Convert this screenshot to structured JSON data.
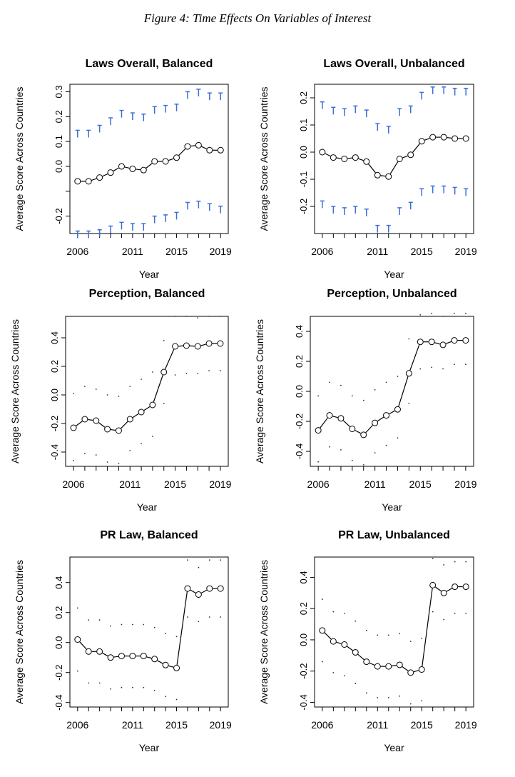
{
  "figure_title": "Figure 4: Time Effects On Variables of Interest",
  "colors": {
    "interval": "#3a6fd8",
    "line": "#000000"
  },
  "chart_data": [
    {
      "type": "line",
      "title": "Laws Overall, Balanced",
      "xlabel": "Year",
      "ylabel": "Average Score Across Countries",
      "ylim": [
        -0.27,
        0.33
      ],
      "yticks": [
        -0.2,
        -0.1,
        0.0,
        0.1,
        0.2,
        0.3
      ],
      "ytick_labels": [
        "-0.2",
        "",
        "0.0",
        "0.1",
        "0.2",
        "0.3"
      ],
      "xticks": [
        2006,
        2011,
        2015,
        2019
      ],
      "interval_style": "whisker",
      "x": [
        2006,
        2007,
        2008,
        2009,
        2010,
        2011,
        2012,
        2013,
        2014,
        2015,
        2016,
        2017,
        2018,
        2019
      ],
      "values": [
        -0.06,
        -0.06,
        -0.045,
        -0.025,
        0.0,
        -0.01,
        -0.015,
        0.02,
        0.02,
        0.035,
        0.08,
        0.085,
        0.065,
        0.065
      ],
      "upper": [
        0.145,
        0.145,
        0.165,
        0.195,
        0.225,
        0.215,
        0.21,
        0.24,
        0.245,
        0.25,
        0.3,
        0.31,
        0.295,
        0.295
      ],
      "lower": [
        -0.26,
        -0.26,
        -0.255,
        -0.24,
        -0.225,
        -0.23,
        -0.23,
        -0.2,
        -0.195,
        -0.185,
        -0.145,
        -0.14,
        -0.15,
        -0.16
      ]
    },
    {
      "type": "line",
      "title": "Laws Overall, Unbalanced",
      "xlabel": "Year",
      "ylabel": "Average Score Across Countries",
      "ylim": [
        -0.3,
        0.25
      ],
      "yticks": [
        -0.2,
        -0.1,
        0.0,
        0.1,
        0.2
      ],
      "ytick_labels": [
        "-0.2",
        "-0.1",
        "0.0",
        "0.1",
        "0.2"
      ],
      "xticks": [
        2006,
        2011,
        2015,
        2019
      ],
      "interval_style": "whisker",
      "x": [
        2006,
        2007,
        2008,
        2009,
        2010,
        2011,
        2012,
        2013,
        2014,
        2015,
        2016,
        2017,
        2018,
        2019
      ],
      "values": [
        0.0,
        -0.02,
        -0.025,
        -0.02,
        -0.035,
        -0.085,
        -0.09,
        -0.025,
        -0.01,
        0.04,
        0.055,
        0.055,
        0.05,
        0.05
      ],
      "upper": [
        0.185,
        0.165,
        0.16,
        0.17,
        0.155,
        0.105,
        0.095,
        0.16,
        0.17,
        0.22,
        0.24,
        0.24,
        0.235,
        0.235
      ],
      "lower": [
        -0.18,
        -0.2,
        -0.205,
        -0.2,
        -0.21,
        -0.27,
        -0.27,
        -0.205,
        -0.185,
        -0.135,
        -0.125,
        -0.125,
        -0.13,
        -0.135
      ]
    },
    {
      "type": "line",
      "title": "Perception, Balanced",
      "xlabel": "Year",
      "ylabel": "Average Score Across Countries",
      "ylim": [
        -0.5,
        0.55
      ],
      "yticks": [
        -0.4,
        -0.2,
        0.0,
        0.2,
        0.4
      ],
      "ytick_labels": [
        "-0.4",
        "-0.2",
        "0.0",
        "0.2",
        "0.4"
      ],
      "xticks": [
        2006,
        2011,
        2015,
        2019
      ],
      "interval_style": "dots",
      "x": [
        2006,
        2007,
        2008,
        2009,
        2010,
        2011,
        2012,
        2013,
        2014,
        2015,
        2016,
        2017,
        2018,
        2019
      ],
      "values": [
        -0.23,
        -0.17,
        -0.18,
        -0.24,
        -0.25,
        -0.17,
        -0.12,
        -0.07,
        0.16,
        0.34,
        0.345,
        0.34,
        0.36,
        0.36
      ],
      "upper": [
        0.01,
        0.06,
        0.04,
        0.0,
        -0.01,
        0.06,
        0.11,
        0.16,
        0.38,
        0.55,
        0.55,
        0.54,
        0.55,
        0.55
      ],
      "lower": [
        -0.46,
        -0.41,
        -0.42,
        -0.47,
        -0.48,
        -0.39,
        -0.34,
        -0.29,
        -0.06,
        0.14,
        0.15,
        0.15,
        0.17,
        0.17
      ]
    },
    {
      "type": "line",
      "title": "Perception, Unbalanced",
      "xlabel": "Year",
      "ylabel": "Average Score Across Countries",
      "ylim": [
        -0.5,
        0.5
      ],
      "yticks": [
        -0.4,
        -0.2,
        0.0,
        0.2,
        0.4
      ],
      "ytick_labels": [
        "-0.4",
        "-0.2",
        "0.0",
        "0.2",
        "0.4"
      ],
      "xticks": [
        2006,
        2011,
        2015,
        2019
      ],
      "interval_style": "dots",
      "x": [
        2006,
        2007,
        2008,
        2009,
        2010,
        2011,
        2012,
        2013,
        2014,
        2015,
        2016,
        2017,
        2018,
        2019
      ],
      "values": [
        -0.26,
        -0.16,
        -0.18,
        -0.25,
        -0.29,
        -0.21,
        -0.16,
        -0.12,
        0.12,
        0.33,
        0.33,
        0.31,
        0.34,
        0.34
      ],
      "upper": [
        -0.03,
        0.06,
        0.04,
        -0.03,
        -0.06,
        0.01,
        0.06,
        0.1,
        0.35,
        0.51,
        0.52,
        0.5,
        0.52,
        0.52
      ],
      "lower": [
        -0.47,
        -0.37,
        -0.39,
        -0.46,
        -0.49,
        -0.41,
        -0.36,
        -0.31,
        -0.08,
        0.15,
        0.16,
        0.15,
        0.18,
        0.18
      ]
    },
    {
      "type": "line",
      "title": "PR Law, Balanced",
      "xlabel": "Year",
      "ylabel": "Average Score Across Countries",
      "ylim": [
        -0.43,
        0.57
      ],
      "yticks": [
        -0.4,
        -0.2,
        0.0,
        0.2,
        0.4
      ],
      "ytick_labels": [
        "-0.4",
        "-0.2",
        "0.0",
        "0.2",
        "0.4"
      ],
      "xticks": [
        2006,
        2011,
        2015,
        2019
      ],
      "interval_style": "dots",
      "x": [
        2006,
        2007,
        2008,
        2009,
        2010,
        2011,
        2012,
        2013,
        2014,
        2015,
        2016,
        2017,
        2018,
        2019
      ],
      "values": [
        0.02,
        -0.06,
        -0.06,
        -0.1,
        -0.09,
        -0.09,
        -0.09,
        -0.11,
        -0.15,
        -0.17,
        0.36,
        0.32,
        0.36,
        0.36
      ],
      "upper": [
        0.23,
        0.15,
        0.15,
        0.11,
        0.12,
        0.12,
        0.12,
        0.1,
        0.06,
        0.04,
        0.55,
        0.5,
        0.55,
        0.55
      ],
      "lower": [
        -0.19,
        -0.27,
        -0.27,
        -0.31,
        -0.3,
        -0.3,
        -0.3,
        -0.32,
        -0.36,
        -0.38,
        0.17,
        0.14,
        0.17,
        0.17
      ]
    },
    {
      "type": "line",
      "title": "PR Law, Unbalanced",
      "xlabel": "Year",
      "ylabel": "Average Score Across Countries",
      "ylim": [
        -0.43,
        0.53
      ],
      "yticks": [
        -0.4,
        -0.2,
        0.0,
        0.2,
        0.4
      ],
      "ytick_labels": [
        "-0.4",
        "-0.2",
        "0.0",
        "0.2",
        "0.4"
      ],
      "xticks": [
        2006,
        2011,
        2015,
        2019
      ],
      "interval_style": "dots",
      "x": [
        2006,
        2007,
        2008,
        2009,
        2010,
        2011,
        2012,
        2013,
        2014,
        2015,
        2016,
        2017,
        2018,
        2019
      ],
      "values": [
        0.06,
        -0.01,
        -0.03,
        -0.08,
        -0.14,
        -0.17,
        -0.17,
        -0.16,
        -0.21,
        -0.19,
        0.35,
        0.3,
        0.34,
        0.34
      ],
      "upper": [
        0.26,
        0.18,
        0.17,
        0.12,
        0.06,
        0.03,
        0.03,
        0.04,
        -0.01,
        0.01,
        0.52,
        0.48,
        0.5,
        0.5
      ],
      "lower": [
        -0.14,
        -0.21,
        -0.23,
        -0.28,
        -0.34,
        -0.37,
        -0.37,
        -0.36,
        -0.41,
        -0.39,
        0.18,
        0.13,
        0.17,
        0.17
      ]
    }
  ]
}
